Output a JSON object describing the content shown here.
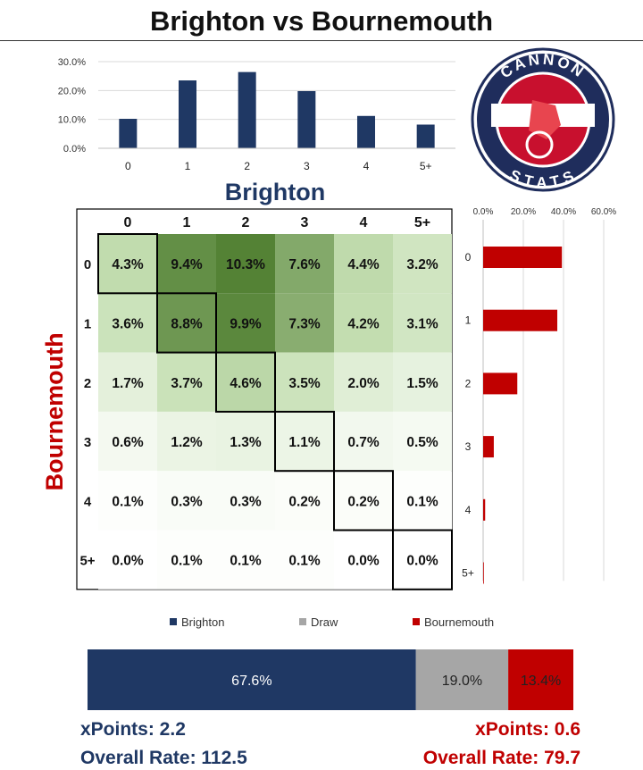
{
  "title": "Brighton vs Bournemouth",
  "logo": {
    "top_text": "CANNON",
    "bottom_text": "STATS",
    "colors": {
      "navy": "#1f2d5c",
      "red": "#c8102e"
    }
  },
  "colors": {
    "brighton": "#1f3864",
    "bournemouth": "#c00000",
    "draw": "#a6a6a6",
    "heat_max": "#548235"
  },
  "chart_data": [
    {
      "type": "bar",
      "title": "Brighton",
      "categories": [
        "0",
        "1",
        "2",
        "3",
        "4",
        "5+"
      ],
      "values": [
        10.2,
        23.5,
        26.4,
        19.8,
        11.2,
        8.2
      ],
      "yticks": [
        "0.0%",
        "10.0%",
        "20.0%",
        "30.0%"
      ],
      "ylim": [
        0,
        30
      ]
    },
    {
      "type": "bar",
      "orientation": "horizontal",
      "categories": [
        "0",
        "1",
        "2",
        "3",
        "4",
        "5+"
      ],
      "values": [
        39.2,
        36.9,
        17.0,
        5.3,
        1.0,
        0.3
      ],
      "xticks": [
        "0.0%",
        "20.0%",
        "40.0%",
        "60.0%"
      ],
      "xlim": [
        0,
        60
      ]
    },
    {
      "type": "heatmap",
      "xlabel": "Brighton",
      "ylabel": "Bournemouth",
      "x": [
        "0",
        "1",
        "2",
        "3",
        "4",
        "5+"
      ],
      "y": [
        "0",
        "1",
        "2",
        "3",
        "4",
        "5+"
      ],
      "values": [
        [
          4.3,
          9.4,
          10.3,
          7.6,
          4.4,
          3.2
        ],
        [
          3.6,
          8.8,
          9.9,
          7.3,
          4.2,
          3.1
        ],
        [
          1.7,
          3.7,
          4.6,
          3.5,
          2.0,
          1.5
        ],
        [
          0.6,
          1.2,
          1.3,
          1.1,
          0.7,
          0.5
        ],
        [
          0.1,
          0.3,
          0.3,
          0.2,
          0.2,
          0.1
        ],
        [
          0.0,
          0.1,
          0.1,
          0.1,
          0.0,
          0.0
        ]
      ]
    },
    {
      "type": "bar",
      "orientation": "stacked-horizontal",
      "series": [
        {
          "name": "Brighton",
          "value": 67.6
        },
        {
          "name": "Draw",
          "value": 19.0
        },
        {
          "name": "Bournemouth",
          "value": 13.4
        }
      ],
      "legend": "top"
    }
  ],
  "summary": {
    "brighton_xpoints": "xPoints: 2.2",
    "brighton_rate": "Overall Rate: 112.5",
    "bournemouth_xpoints": "xPoints: 0.6",
    "bournemouth_rate": "Overall Rate: 79.7"
  }
}
